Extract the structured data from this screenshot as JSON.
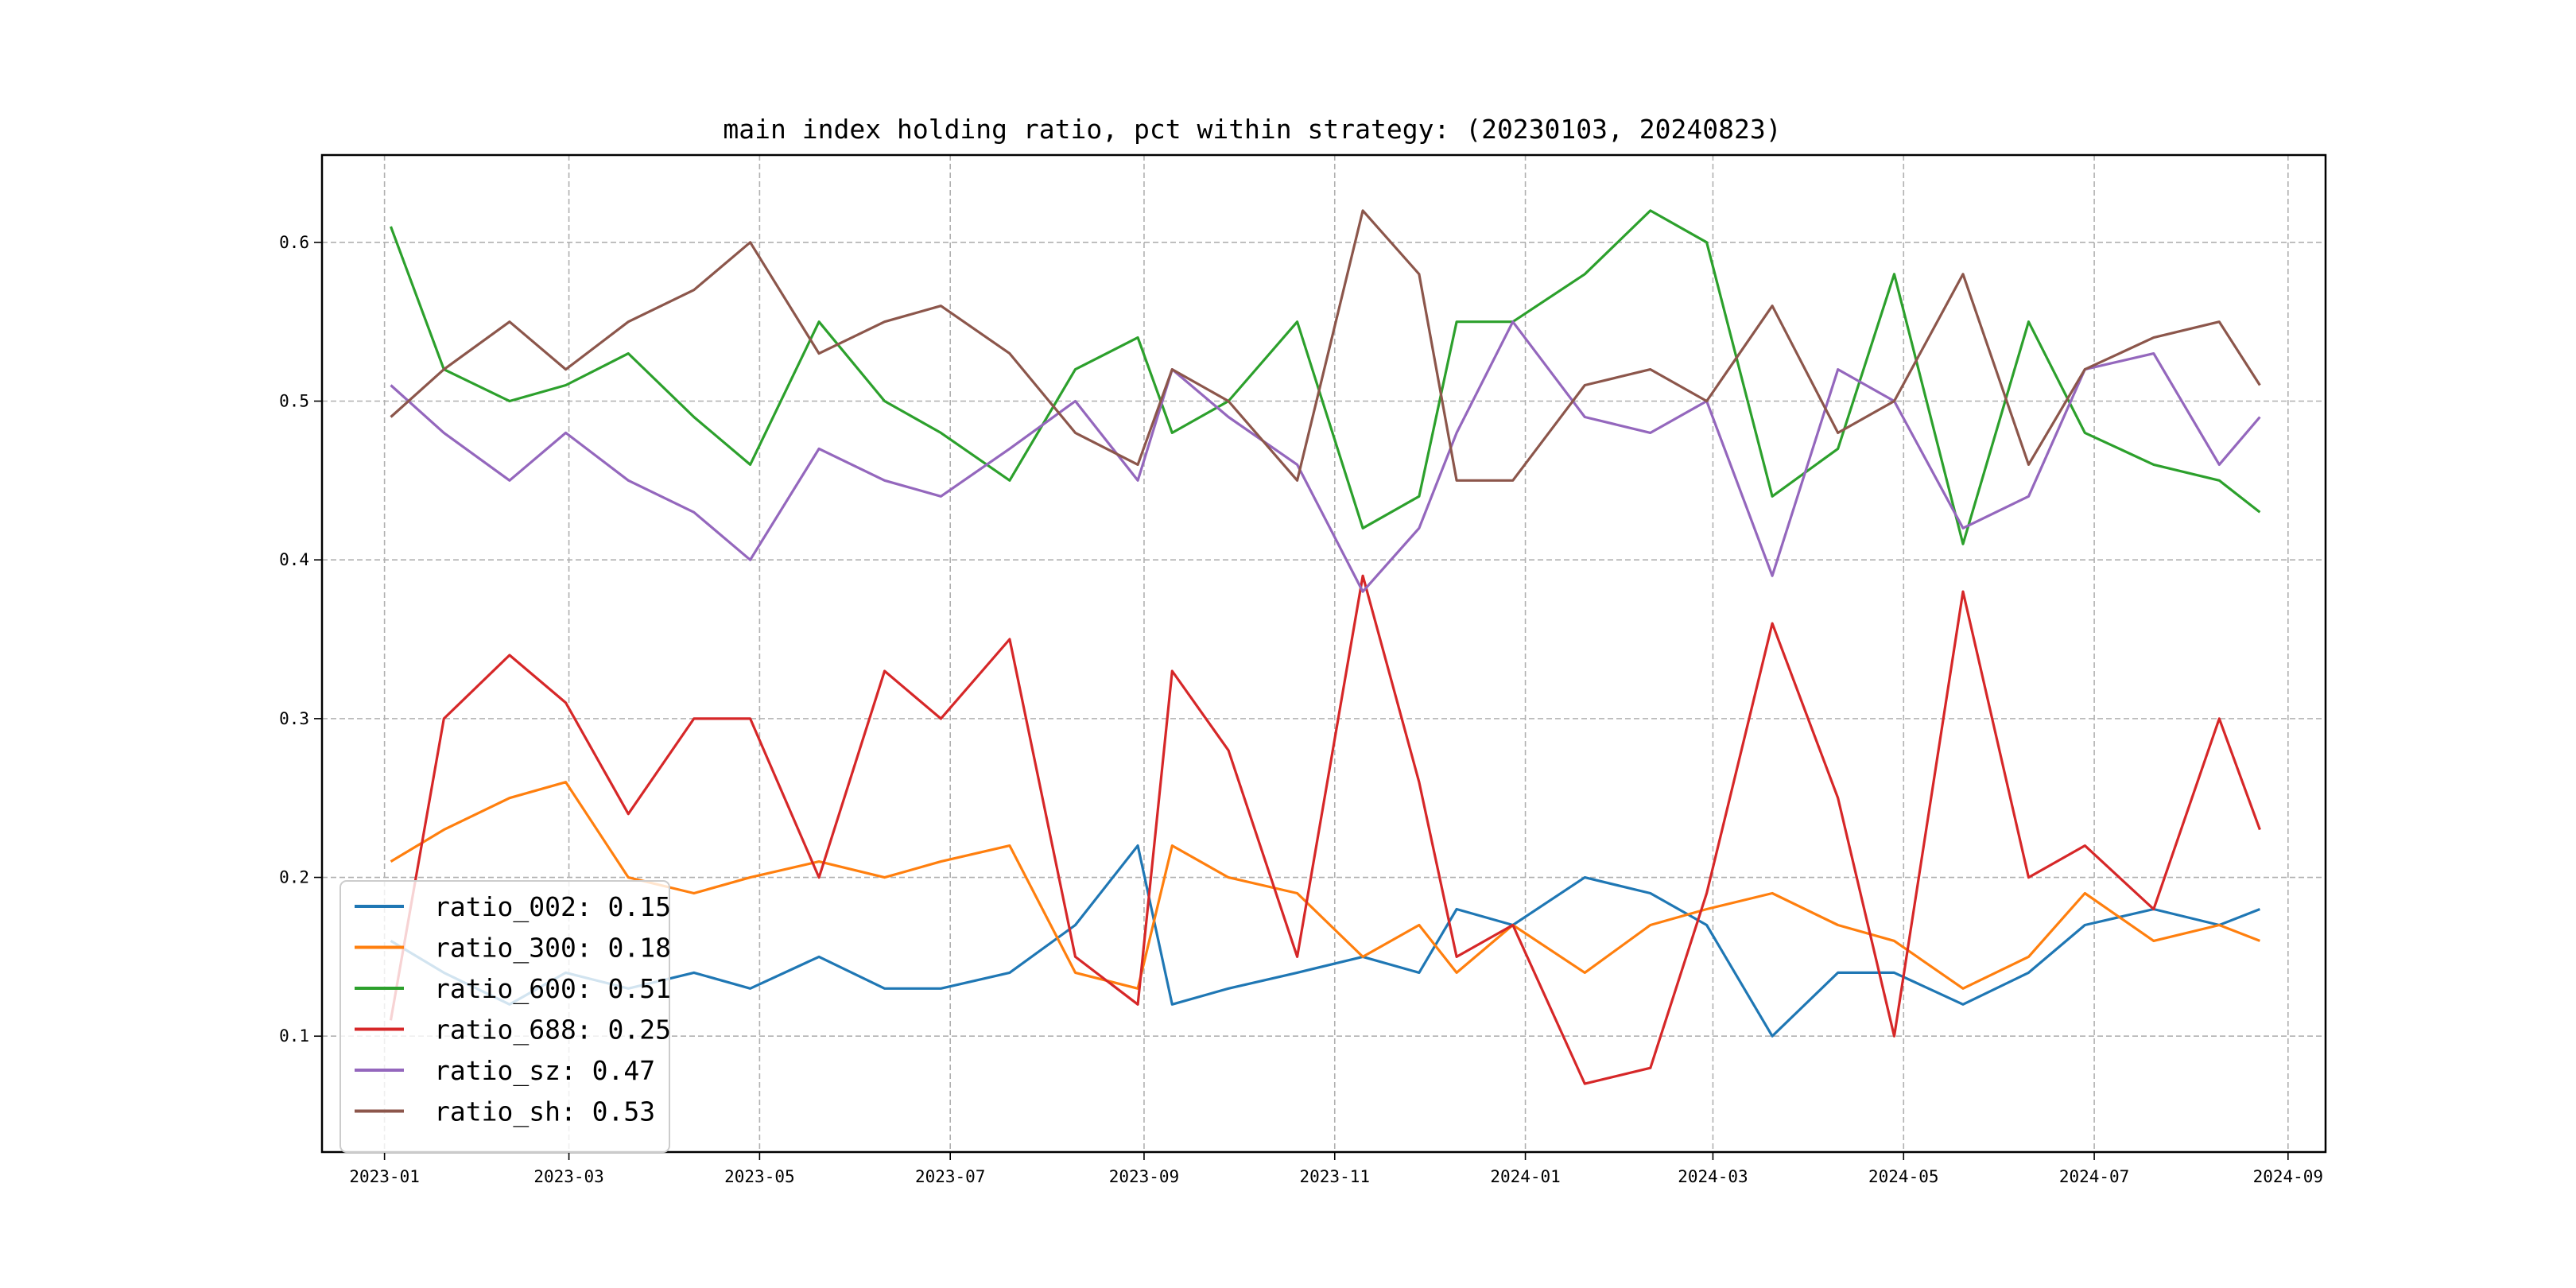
{
  "chart_data": {
    "type": "line",
    "title": "main index holding ratio, pct within strategy: (20230103, 20240823)",
    "xlabel": "",
    "ylabel": "",
    "x_range": [
      "2022-12-12",
      "2024-09-13"
    ],
    "x_ticks": [
      "2023-01",
      "2023-03",
      "2023-05",
      "2023-07",
      "2023-09",
      "2023-11",
      "2024-01",
      "2024-03",
      "2024-05",
      "2024-07",
      "2024-09"
    ],
    "x_tick_labels": [
      "2023-01",
      "2023-03",
      "2023-05",
      "2023-07",
      "2023-09",
      "2023-11",
      "2024-01",
      "2024-03",
      "2024-05",
      "2024-07",
      "2024-09"
    ],
    "ylim": [
      0.027,
      0.655
    ],
    "y_ticks": [
      0.1,
      0.2,
      0.3,
      0.4,
      0.5,
      0.6
    ],
    "y_tick_labels": [
      "0.1",
      "0.2",
      "0.3",
      "0.4",
      "0.5",
      "0.6"
    ],
    "grid": true,
    "grid_style": "dashed",
    "legend_position": "lower-left",
    "series": [
      {
        "name": "ratio_002",
        "legend_label": "ratio_002: 0.15",
        "color": "#1f77b4",
        "points": [
          [
            "2023-01-03",
            0.16
          ],
          [
            "2023-01-20",
            0.14
          ],
          [
            "2023-02-10",
            0.12
          ],
          [
            "2023-02-28",
            0.14
          ],
          [
            "2023-03-20",
            0.13
          ],
          [
            "2023-04-10",
            0.14
          ],
          [
            "2023-04-28",
            0.13
          ],
          [
            "2023-05-20",
            0.15
          ],
          [
            "2023-06-10",
            0.13
          ],
          [
            "2023-06-28",
            0.13
          ],
          [
            "2023-07-20",
            0.14
          ],
          [
            "2023-08-10",
            0.17
          ],
          [
            "2023-08-30",
            0.22
          ],
          [
            "2023-09-10",
            0.12
          ],
          [
            "2023-09-28",
            0.13
          ],
          [
            "2023-10-20",
            0.14
          ],
          [
            "2023-11-10",
            0.15
          ],
          [
            "2023-11-28",
            0.14
          ],
          [
            "2023-12-10",
            0.18
          ],
          [
            "2023-12-28",
            0.17
          ],
          [
            "2024-01-20",
            0.2
          ],
          [
            "2024-02-10",
            0.19
          ],
          [
            "2024-02-28",
            0.17
          ],
          [
            "2024-03-20",
            0.1
          ],
          [
            "2024-04-10",
            0.14
          ],
          [
            "2024-04-28",
            0.14
          ],
          [
            "2024-05-20",
            0.12
          ],
          [
            "2024-06-10",
            0.14
          ],
          [
            "2024-06-28",
            0.17
          ],
          [
            "2024-07-20",
            0.18
          ],
          [
            "2024-08-10",
            0.17
          ],
          [
            "2024-08-23",
            0.18
          ]
        ]
      },
      {
        "name": "ratio_300",
        "legend_label": "ratio_300: 0.18",
        "color": "#ff7f0e",
        "points": [
          [
            "2023-01-03",
            0.21
          ],
          [
            "2023-01-20",
            0.23
          ],
          [
            "2023-02-10",
            0.25
          ],
          [
            "2023-02-28",
            0.26
          ],
          [
            "2023-03-20",
            0.2
          ],
          [
            "2023-04-10",
            0.19
          ],
          [
            "2023-04-28",
            0.2
          ],
          [
            "2023-05-20",
            0.21
          ],
          [
            "2023-06-10",
            0.2
          ],
          [
            "2023-06-28",
            0.21
          ],
          [
            "2023-07-20",
            0.22
          ],
          [
            "2023-08-10",
            0.14
          ],
          [
            "2023-08-30",
            0.13
          ],
          [
            "2023-09-10",
            0.22
          ],
          [
            "2023-09-28",
            0.2
          ],
          [
            "2023-10-20",
            0.19
          ],
          [
            "2023-11-10",
            0.15
          ],
          [
            "2023-11-28",
            0.17
          ],
          [
            "2023-12-10",
            0.14
          ],
          [
            "2023-12-28",
            0.17
          ],
          [
            "2024-01-20",
            0.14
          ],
          [
            "2024-02-10",
            0.17
          ],
          [
            "2024-02-28",
            0.18
          ],
          [
            "2024-03-20",
            0.19
          ],
          [
            "2024-04-10",
            0.17
          ],
          [
            "2024-04-28",
            0.16
          ],
          [
            "2024-05-20",
            0.13
          ],
          [
            "2024-06-10",
            0.15
          ],
          [
            "2024-06-28",
            0.19
          ],
          [
            "2024-07-20",
            0.16
          ],
          [
            "2024-08-10",
            0.17
          ],
          [
            "2024-08-23",
            0.16
          ]
        ]
      },
      {
        "name": "ratio_600",
        "legend_label": "ratio_600: 0.51",
        "color": "#2ca02c",
        "points": [
          [
            "2023-01-03",
            0.61
          ],
          [
            "2023-01-20",
            0.52
          ],
          [
            "2023-02-10",
            0.5
          ],
          [
            "2023-02-28",
            0.51
          ],
          [
            "2023-03-20",
            0.53
          ],
          [
            "2023-04-10",
            0.49
          ],
          [
            "2023-04-28",
            0.46
          ],
          [
            "2023-05-20",
            0.55
          ],
          [
            "2023-06-10",
            0.5
          ],
          [
            "2023-06-28",
            0.48
          ],
          [
            "2023-07-20",
            0.45
          ],
          [
            "2023-08-10",
            0.52
          ],
          [
            "2023-08-30",
            0.54
          ],
          [
            "2023-09-10",
            0.48
          ],
          [
            "2023-09-28",
            0.5
          ],
          [
            "2023-10-20",
            0.55
          ],
          [
            "2023-11-10",
            0.42
          ],
          [
            "2023-11-28",
            0.44
          ],
          [
            "2023-12-10",
            0.55
          ],
          [
            "2023-12-28",
            0.55
          ],
          [
            "2024-01-20",
            0.58
          ],
          [
            "2024-02-10",
            0.62
          ],
          [
            "2024-02-28",
            0.6
          ],
          [
            "2024-03-20",
            0.44
          ],
          [
            "2024-04-10",
            0.47
          ],
          [
            "2024-04-28",
            0.58
          ],
          [
            "2024-05-20",
            0.41
          ],
          [
            "2024-06-10",
            0.55
          ],
          [
            "2024-06-28",
            0.48
          ],
          [
            "2024-07-20",
            0.46
          ],
          [
            "2024-08-10",
            0.45
          ],
          [
            "2024-08-23",
            0.43
          ]
        ]
      },
      {
        "name": "ratio_688",
        "legend_label": "ratio_688: 0.25",
        "color": "#d62728",
        "points": [
          [
            "2023-01-03",
            0.11
          ],
          [
            "2023-01-20",
            0.3
          ],
          [
            "2023-02-10",
            0.34
          ],
          [
            "2023-02-28",
            0.31
          ],
          [
            "2023-03-20",
            0.24
          ],
          [
            "2023-04-10",
            0.3
          ],
          [
            "2023-04-28",
            0.3
          ],
          [
            "2023-05-20",
            0.2
          ],
          [
            "2023-06-10",
            0.33
          ],
          [
            "2023-06-28",
            0.3
          ],
          [
            "2023-07-20",
            0.35
          ],
          [
            "2023-08-10",
            0.15
          ],
          [
            "2023-08-30",
            0.12
          ],
          [
            "2023-09-10",
            0.33
          ],
          [
            "2023-09-28",
            0.28
          ],
          [
            "2023-10-20",
            0.15
          ],
          [
            "2023-11-10",
            0.39
          ],
          [
            "2023-11-28",
            0.26
          ],
          [
            "2023-12-10",
            0.15
          ],
          [
            "2023-12-28",
            0.17
          ],
          [
            "2024-01-20",
            0.07
          ],
          [
            "2024-02-10",
            0.08
          ],
          [
            "2024-02-28",
            0.19
          ],
          [
            "2024-03-20",
            0.36
          ],
          [
            "2024-04-10",
            0.25
          ],
          [
            "2024-04-28",
            0.1
          ],
          [
            "2024-05-20",
            0.38
          ],
          [
            "2024-06-10",
            0.2
          ],
          [
            "2024-06-28",
            0.22
          ],
          [
            "2024-07-20",
            0.18
          ],
          [
            "2024-08-10",
            0.3
          ],
          [
            "2024-08-23",
            0.23
          ]
        ]
      },
      {
        "name": "ratio_sz",
        "legend_label": "ratio_sz: 0.47",
        "color": "#9467bd",
        "points": [
          [
            "2023-01-03",
            0.51
          ],
          [
            "2023-01-20",
            0.48
          ],
          [
            "2023-02-10",
            0.45
          ],
          [
            "2023-02-28",
            0.48
          ],
          [
            "2023-03-20",
            0.45
          ],
          [
            "2023-04-10",
            0.43
          ],
          [
            "2023-04-28",
            0.4
          ],
          [
            "2023-05-20",
            0.47
          ],
          [
            "2023-06-10",
            0.45
          ],
          [
            "2023-06-28",
            0.44
          ],
          [
            "2023-07-20",
            0.47
          ],
          [
            "2023-08-10",
            0.5
          ],
          [
            "2023-08-30",
            0.45
          ],
          [
            "2023-09-10",
            0.52
          ],
          [
            "2023-09-28",
            0.49
          ],
          [
            "2023-10-20",
            0.46
          ],
          [
            "2023-11-10",
            0.38
          ],
          [
            "2023-11-28",
            0.42
          ],
          [
            "2023-12-10",
            0.48
          ],
          [
            "2023-12-28",
            0.55
          ],
          [
            "2024-01-20",
            0.49
          ],
          [
            "2024-02-10",
            0.48
          ],
          [
            "2024-02-28",
            0.5
          ],
          [
            "2024-03-20",
            0.39
          ],
          [
            "2024-04-10",
            0.52
          ],
          [
            "2024-04-28",
            0.5
          ],
          [
            "2024-05-20",
            0.42
          ],
          [
            "2024-06-10",
            0.44
          ],
          [
            "2024-06-28",
            0.52
          ],
          [
            "2024-07-20",
            0.53
          ],
          [
            "2024-08-10",
            0.46
          ],
          [
            "2024-08-23",
            0.49
          ]
        ]
      },
      {
        "name": "ratio_sh",
        "legend_label": "ratio_sh: 0.53",
        "color": "#8c564b",
        "points": [
          [
            "2023-01-03",
            0.49
          ],
          [
            "2023-01-20",
            0.52
          ],
          [
            "2023-02-10",
            0.55
          ],
          [
            "2023-02-28",
            0.52
          ],
          [
            "2023-03-20",
            0.55
          ],
          [
            "2023-04-10",
            0.57
          ],
          [
            "2023-04-28",
            0.6
          ],
          [
            "2023-05-20",
            0.53
          ],
          [
            "2023-06-10",
            0.55
          ],
          [
            "2023-06-28",
            0.56
          ],
          [
            "2023-07-20",
            0.53
          ],
          [
            "2023-08-10",
            0.48
          ],
          [
            "2023-08-30",
            0.46
          ],
          [
            "2023-09-10",
            0.52
          ],
          [
            "2023-09-28",
            0.5
          ],
          [
            "2023-10-20",
            0.45
          ],
          [
            "2023-11-10",
            0.62
          ],
          [
            "2023-11-28",
            0.58
          ],
          [
            "2023-12-10",
            0.45
          ],
          [
            "2023-12-28",
            0.45
          ],
          [
            "2024-01-20",
            0.51
          ],
          [
            "2024-02-10",
            0.52
          ],
          [
            "2024-02-28",
            0.5
          ],
          [
            "2024-03-20",
            0.56
          ],
          [
            "2024-04-10",
            0.48
          ],
          [
            "2024-04-28",
            0.5
          ],
          [
            "2024-05-20",
            0.58
          ],
          [
            "2024-06-10",
            0.46
          ],
          [
            "2024-06-28",
            0.52
          ],
          [
            "2024-07-20",
            0.54
          ],
          [
            "2024-08-10",
            0.55
          ],
          [
            "2024-08-23",
            0.51
          ]
        ]
      }
    ]
  }
}
